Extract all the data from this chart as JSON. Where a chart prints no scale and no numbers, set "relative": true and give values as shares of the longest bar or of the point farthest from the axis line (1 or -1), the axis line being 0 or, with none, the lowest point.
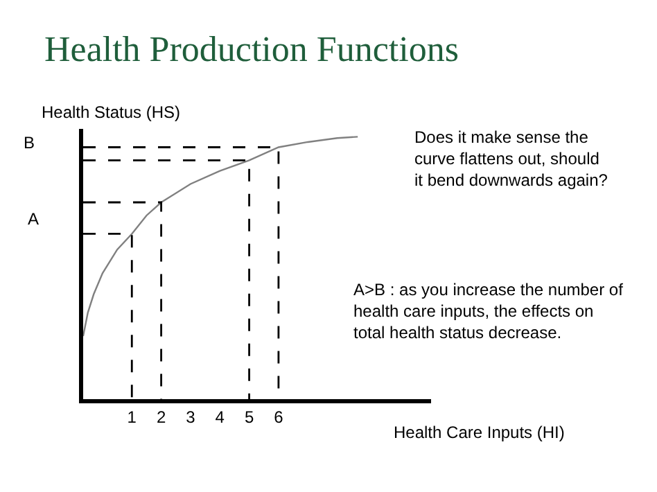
{
  "chart_data": {
    "type": "line",
    "title": "Health Production Functions",
    "ylabel": "Health Status (HS)",
    "xlabel": "Health Care Inputs (HI)",
    "relative": true,
    "marker": "none",
    "xlim": [
      -0.66,
      11.2
    ],
    "xticks": [
      1,
      2,
      3,
      4,
      5,
      6
    ],
    "series": [
      {
        "color": "#808080",
        "line_style": "solid",
        "x": [
          -0.66,
          -0.5,
          -0.3,
          0,
          0.5,
          1,
          1.5,
          2,
          3,
          4,
          5,
          6,
          7,
          8,
          8.7
        ],
        "values": [
          0.24,
          0.33,
          0.4,
          0.48,
          0.57,
          0.63,
          0.7,
          0.75,
          0.82,
          0.87,
          0.91,
          0.96,
          0.98,
          0.995,
          1
        ]
      },
      {
        "color": "#000000",
        "line_style": "dashed",
        "x": [
          -0.66,
          1,
          1
        ],
        "values": [
          0.63,
          0.63,
          0
        ]
      },
      {
        "color": "#000000",
        "line_style": "dashed",
        "x": [
          -0.66,
          2,
          2
        ],
        "values": [
          0.75,
          0.75,
          0
        ]
      },
      {
        "color": "#000000",
        "line_style": "dashed",
        "x": [
          -0.66,
          5,
          5
        ],
        "values": [
          0.91,
          0.91,
          0
        ]
      },
      {
        "color": "#000000",
        "line_style": "dashed",
        "x": [
          -0.66,
          6,
          6
        ],
        "values": [
          0.96,
          0.96,
          0
        ]
      }
    ],
    "annotations": [
      "Does it make sense the curve flattens out, should it bend downwards again?",
      "A>B : as you increase the number of health care inputs, the effects on total health status decrease.",
      "A",
      "B"
    ]
  }
}
